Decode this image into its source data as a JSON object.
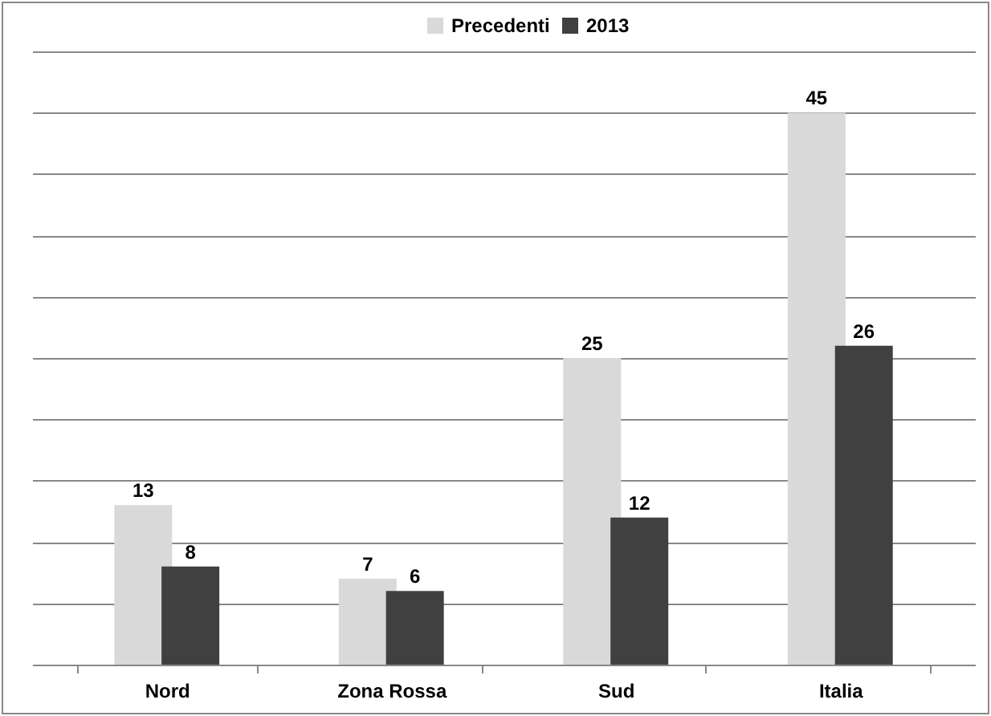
{
  "chart_data": {
    "type": "bar",
    "categories": [
      "Nord",
      "Zona Rossa",
      "Sud",
      "Italia"
    ],
    "series": [
      {
        "name": "Precedenti",
        "color": "#d9d9d9",
        "values": [
          13,
          7,
          25,
          45
        ]
      },
      {
        "name": "2013",
        "color": "#404040",
        "values": [
          8,
          6,
          12,
          26
        ]
      }
    ],
    "ylim": [
      0,
      50
    ],
    "yticks": [
      {
        "value": 0,
        "label": null
      },
      {
        "value": 5,
        "label": null
      },
      {
        "value": 10,
        "label": null
      },
      {
        "value": 15,
        "label": null
      },
      {
        "value": 20,
        "label": null
      },
      {
        "value": 25,
        "label": null
      },
      {
        "value": 30,
        "label": null
      },
      {
        "value": 35,
        "label": null
      },
      {
        "value": 40,
        "label": null
      },
      {
        "value": 45,
        "label": null
      },
      {
        "value": 50,
        "label": null
      }
    ],
    "tick_labels": "x",
    "grid": "y",
    "legend": "top",
    "data_labels": true
  }
}
